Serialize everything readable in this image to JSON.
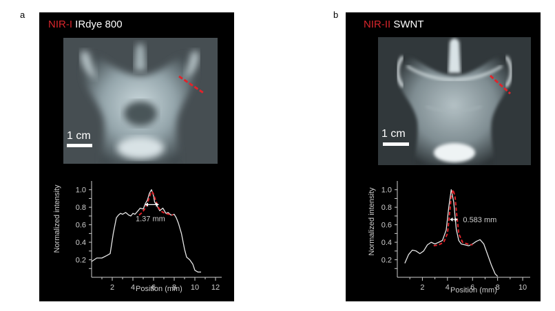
{
  "panels": [
    {
      "letter": "a",
      "title_red": "NIR-I",
      "title_white": "IRdye 800",
      "scale_label": "1 cm",
      "chart_data": {
        "type": "line",
        "xlabel": "Position (mm)",
        "ylabel": "Normalized intensity",
        "xlim": [
          0,
          12.6
        ],
        "ylim": [
          0,
          1.1
        ],
        "xticks": [
          2,
          4,
          6,
          8,
          10,
          12
        ],
        "yticks": [
          0.2,
          0.4,
          0.6,
          0.8,
          1.0
        ],
        "ytick_labels": [
          "0.2",
          "0.4",
          "0.6",
          "0.8",
          "1.0"
        ],
        "fwhm_label": "1.37 mm",
        "fwhm_span": [
          5.2,
          6.5
        ],
        "fwhm_y": 0.83,
        "series": [
          {
            "name": "measured",
            "color": "#e8e8e8",
            "x": [
              0,
              0.5,
              1.0,
              1.5,
              1.8,
              2.1,
              2.4,
              2.6,
              2.8,
              3.0,
              3.3,
              3.6,
              3.8,
              4.0,
              4.2,
              4.5,
              4.7,
              5.0,
              5.2,
              5.4,
              5.6,
              5.8,
              6.0,
              6.1,
              6.3,
              6.6,
              6.9,
              7.2,
              7.4,
              7.7,
              8.0,
              8.2,
              8.4,
              8.7,
              9.0,
              9.2,
              9.5,
              9.8,
              10.0,
              10.3,
              10.6
            ],
            "y": [
              0.18,
              0.22,
              0.22,
              0.25,
              0.27,
              0.5,
              0.68,
              0.71,
              0.73,
              0.72,
              0.74,
              0.71,
              0.7,
              0.73,
              0.72,
              0.76,
              0.79,
              0.78,
              0.84,
              0.88,
              0.96,
              1.0,
              0.93,
              0.86,
              0.82,
              0.76,
              0.79,
              0.73,
              0.74,
              0.71,
              0.72,
              0.68,
              0.62,
              0.5,
              0.32,
              0.23,
              0.2,
              0.15,
              0.08,
              0.06,
              0.06
            ]
          },
          {
            "name": "fit",
            "color": "#e0242b",
            "x": [
              4.6,
              4.9,
              5.2,
              5.5,
              5.7,
              5.85,
              6.0,
              6.2,
              6.5,
              6.8,
              7.1,
              7.5,
              7.9
            ],
            "y": [
              0.71,
              0.74,
              0.79,
              0.88,
              0.95,
              0.98,
              0.95,
              0.88,
              0.79,
              0.75,
              0.73,
              0.72,
              0.71
            ]
          }
        ]
      }
    },
    {
      "letter": "b",
      "title_red": "NIR-II",
      "title_white": "SWNT",
      "scale_label": "1 cm",
      "chart_data": {
        "type": "line",
        "xlabel": "Position (mm)",
        "ylabel": "Normalized intensity",
        "xlim": [
          0,
          10.6
        ],
        "ylim": [
          0,
          1.1
        ],
        "xticks": [
          2,
          4,
          6,
          8,
          10
        ],
        "yticks": [
          0.2,
          0.4,
          0.6,
          0.8,
          1.0
        ],
        "ytick_labels": [
          "0.2",
          "0.4",
          "0.6",
          "0.8",
          "1.0"
        ],
        "fwhm_label": "0.583 mm",
        "fwhm_span": [
          4.2,
          4.8
        ],
        "fwhm_y": 0.66,
        "series": [
          {
            "name": "measured",
            "color": "#e8e8e8",
            "x": [
              0.6,
              0.9,
              1.2,
              1.5,
              1.8,
              2.1,
              2.4,
              2.7,
              3.0,
              3.3,
              3.6,
              3.9,
              4.1,
              4.3,
              4.5,
              4.7,
              4.9,
              5.1,
              5.4,
              5.7,
              6.0,
              6.3,
              6.6,
              6.9,
              7.2,
              7.5,
              7.8,
              8.0
            ],
            "y": [
              0.16,
              0.26,
              0.31,
              0.3,
              0.27,
              0.3,
              0.37,
              0.4,
              0.38,
              0.4,
              0.42,
              0.54,
              0.8,
              1.0,
              0.86,
              0.55,
              0.42,
              0.38,
              0.37,
              0.36,
              0.38,
              0.41,
              0.43,
              0.38,
              0.26,
              0.14,
              0.04,
              0.01
            ]
          },
          {
            "name": "fit",
            "color": "#e0242b",
            "x": [
              2.9,
              3.3,
              3.7,
              4.0,
              4.15,
              4.3,
              4.45,
              4.6,
              4.75,
              4.9,
              5.2,
              5.6,
              6.0
            ],
            "y": [
              0.36,
              0.37,
              0.4,
              0.5,
              0.7,
              0.92,
              1.0,
              0.92,
              0.7,
              0.5,
              0.4,
              0.38,
              0.37
            ]
          }
        ]
      }
    }
  ]
}
